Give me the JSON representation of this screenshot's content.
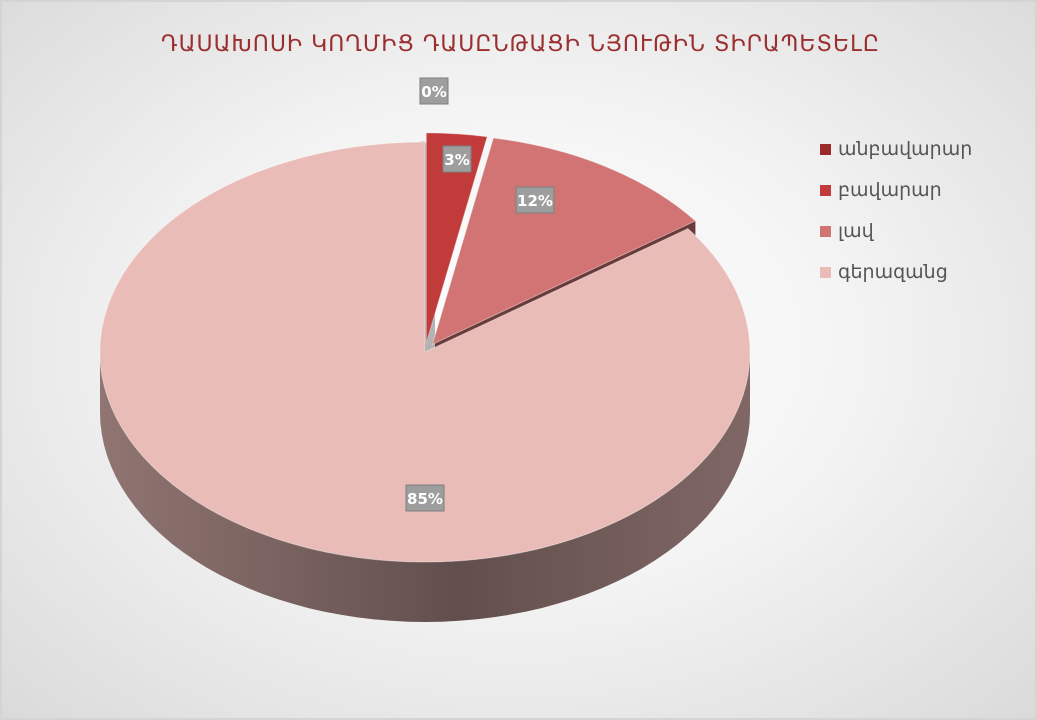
{
  "chart_data": {
    "type": "pie",
    "title": "ԴԱՍԱԽՈՍԻ ԿՈՂՄԻՑ ԴԱՍԸՆԹԱՑԻ ՆՅՈՒԹԻՆ ՏԻՐԱՊԵՏԵԼԸ",
    "categories": [
      "անբավարար",
      "բավարար",
      "լավ",
      "գերազանց"
    ],
    "values": [
      0,
      3,
      12,
      85
    ],
    "value_labels": [
      "0%",
      "3%",
      "12%",
      "85%"
    ],
    "colors": [
      "#9b2a2a",
      "#c23b3b",
      "#d27474",
      "#e9bcb8"
    ],
    "exploded": true,
    "3d": true,
    "legend_position": "right"
  }
}
